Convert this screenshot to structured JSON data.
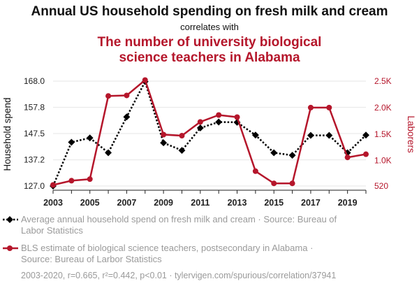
{
  "titles": {
    "main": "Annual US household spending on fresh milk and cream",
    "connector": "correlates with",
    "second_line1": "The number of university biological",
    "second_line2": "science teachers in Alabama"
  },
  "colors": {
    "series1": "#000000",
    "series2": "#b5162b",
    "grid": "#e6e6e6",
    "muted": "#9a9a9a"
  },
  "chart_data": {
    "type": "line",
    "x": [
      2003,
      2004,
      2005,
      2006,
      2007,
      2008,
      2009,
      2010,
      2011,
      2012,
      2013,
      2014,
      2015,
      2016,
      2017,
      2018,
      2019,
      2020
    ],
    "xlim": [
      2003,
      2020
    ],
    "x_ticks": [
      "2003",
      "2005",
      "2007",
      "2009",
      "2011",
      "2013",
      "2015",
      "2017",
      "2019"
    ],
    "y_left": {
      "label": "Household spend",
      "ticks": [
        "127.0",
        "137.2",
        "147.5",
        "157.8",
        "168.0"
      ],
      "ylim": [
        127.0,
        168.0
      ]
    },
    "y_right": {
      "label": "Laborers",
      "ticks": [
        "520",
        "1.0K",
        "1.5K",
        "2.0K",
        "2.5K"
      ],
      "tick_values": [
        520,
        1000,
        1500,
        2000,
        2500
      ],
      "ylim": [
        520,
        2500
      ]
    },
    "grid": "horizontal",
    "series": [
      {
        "axis": "left",
        "style": "dotted-black-diamonds",
        "values": [
          127.0,
          144.1,
          145.8,
          140.0,
          154.0,
          167.8,
          143.9,
          140.9,
          149.7,
          152.0,
          151.9,
          146.9,
          140.0,
          139.0,
          146.8,
          146.8,
          140.0,
          146.9
        ]
      },
      {
        "axis": "right",
        "style": "solid-red-circles",
        "values": [
          540,
          620,
          650,
          2220,
          2230,
          2520,
          1490,
          1470,
          1730,
          1860,
          1820,
          800,
          570,
          570,
          2000,
          2000,
          1060,
          1120
        ]
      }
    ]
  },
  "legend": {
    "series1_line1": "Average annual household spend on fresh milk and cream · Source: Bureau of",
    "series1_line2": "Labor Statistics",
    "series2_line1": "BLS estimate of biological science teachers, postsecondary in Alabama ·",
    "series2_line2": "Source: Bureau of Larbor Statistics"
  },
  "footer": "2003-2020, r=0.665, r²=0.442, p<0.01 · tylervigen.com/spurious/correlation/37941"
}
